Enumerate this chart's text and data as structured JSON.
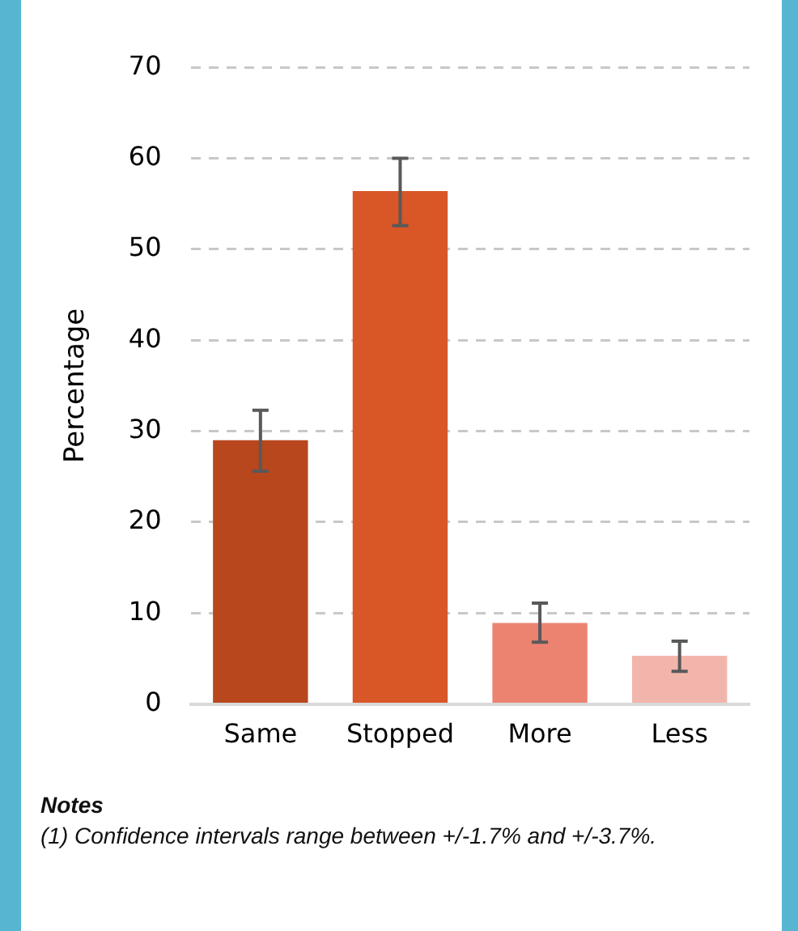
{
  "chart_data": {
    "type": "bar",
    "ylabel": "Percentage",
    "categories": [
      "Same",
      "Stopped",
      "More",
      "Less"
    ],
    "values": [
      29.0,
      56.4,
      8.9,
      5.3
    ],
    "colors": [
      "#b8471e",
      "#d95627",
      "#ec8371",
      "#f2b5ac"
    ],
    "errors": [
      [
        25.6,
        32.3
      ],
      [
        52.6,
        60.0
      ],
      [
        6.8,
        11.1
      ],
      [
        3.6,
        6.9
      ]
    ],
    "ylim": [
      0,
      70
    ],
    "yticks": [
      0,
      10,
      20,
      30,
      40,
      50,
      60,
      70
    ],
    "grid": "y",
    "legend": false,
    "annotations": [
      "Notes",
      "(1) Confidence intervals range between +/-1.7% and +/-3.7%."
    ]
  }
}
